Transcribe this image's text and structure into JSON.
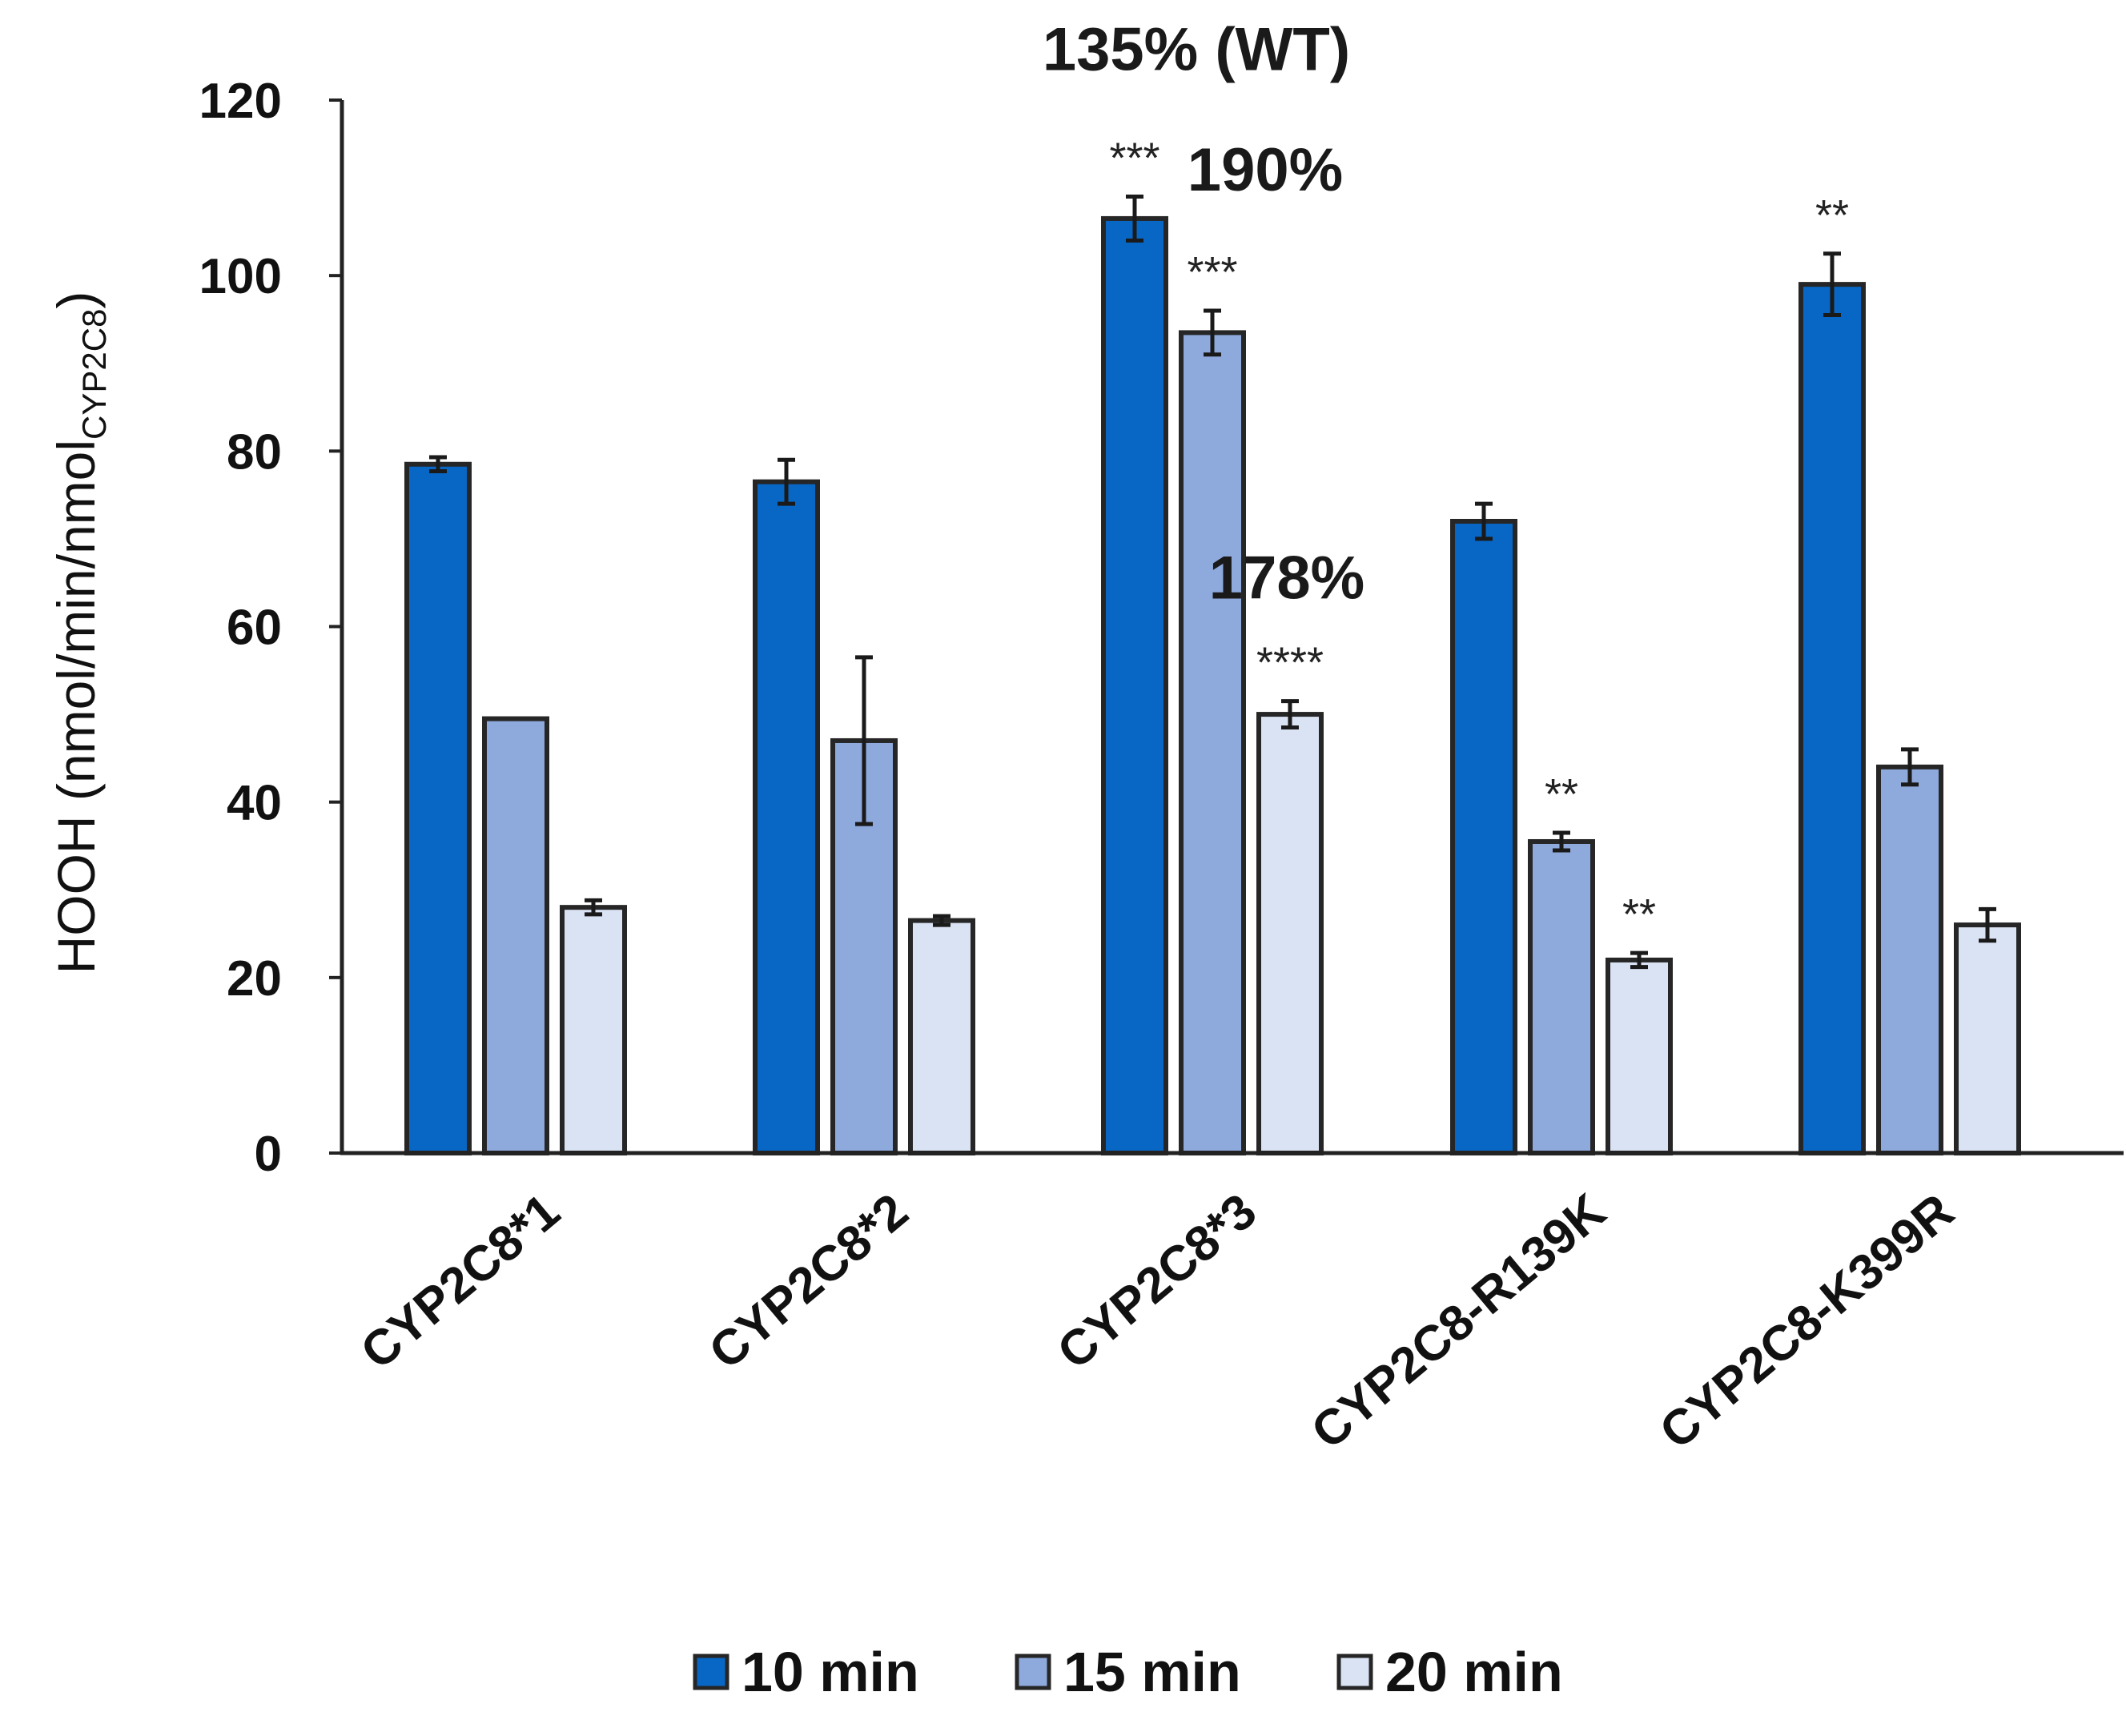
{
  "chart_data": {
    "type": "bar",
    "title": "",
    "xlabel": "",
    "ylabel": {
      "main": "HOOH (nmol/min/nmol",
      "subscript": "CYP2C8",
      "close": ")"
    },
    "ylim": [
      0,
      120
    ],
    "yticks": [
      0,
      20,
      40,
      60,
      80,
      100,
      120
    ],
    "categories": [
      "CYP2C8*1",
      "CYP2C8*2",
      "CYP2C8*3",
      "CYP2C8-R139K",
      "CYP2C8-K399R"
    ],
    "series": [
      {
        "name": "10 min",
        "color": "#0867c4",
        "values": [
          78.5,
          76.5,
          106.5,
          72,
          99
        ],
        "errors": [
          0.8,
          2.5,
          2.5,
          2.0,
          3.5
        ]
      },
      {
        "name": "15 min",
        "color": "#8ea9dc",
        "values": [
          49.5,
          47,
          93.5,
          35.5,
          44
        ],
        "errors": [
          0,
          9.5,
          2.5,
          1.0,
          2.0
        ]
      },
      {
        "name": "20 min",
        "color": "#dae3f4",
        "values": [
          28,
          26.5,
          50,
          22,
          26
        ],
        "errors": [
          0.8,
          0.5,
          1.5,
          0.8,
          1.8
        ]
      }
    ],
    "significance": [
      {
        "category": 2,
        "series": 0,
        "label": "***"
      },
      {
        "category": 2,
        "series": 1,
        "label": "***"
      },
      {
        "category": 2,
        "series": 2,
        "label": "****"
      },
      {
        "category": 3,
        "series": 1,
        "label": "**"
      },
      {
        "category": 3,
        "series": 2,
        "label": "**"
      },
      {
        "category": 4,
        "series": 0,
        "label": "**"
      }
    ],
    "annotations": [
      {
        "text": "135% (WT)",
        "anchor": "category 3, 10 min bar"
      },
      {
        "text": "190%",
        "anchor": "category 3, 15 min bar"
      },
      {
        "text": "178%",
        "anchor": "category 3, 20 min bar"
      }
    ],
    "legend": {
      "placement": "bottom",
      "entries": [
        "10 min",
        "15 min",
        "20 min"
      ]
    },
    "grid": false
  }
}
